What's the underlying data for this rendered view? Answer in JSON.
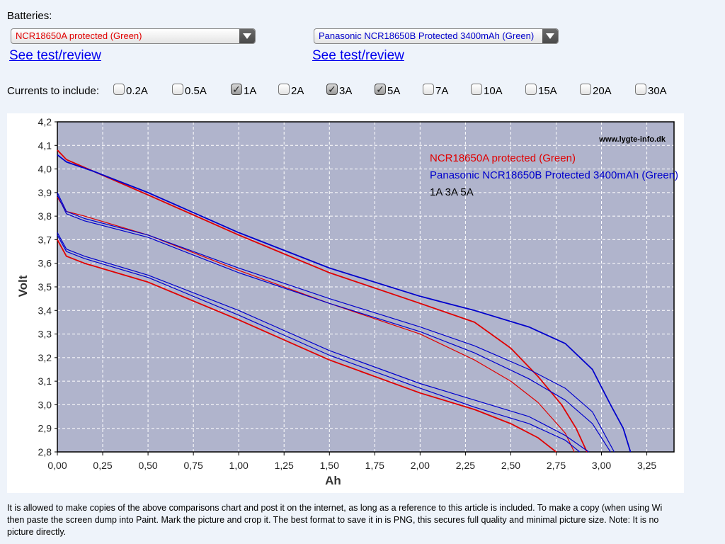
{
  "header": {
    "batteries_label": "Batteries:",
    "battery_1": {
      "selected": "NCR18650A protected (Green)",
      "color": "#e00000",
      "link": "See test/review"
    },
    "battery_2": {
      "selected": "Panasonic NCR18650B Protected 3400mAh (Green)",
      "color": "#0000cc",
      "link": "See test/review"
    }
  },
  "currents": {
    "label": "Currents to include:",
    "options": [
      {
        "label": "0.2A",
        "checked": false
      },
      {
        "label": "0.5A",
        "checked": false
      },
      {
        "label": "1A",
        "checked": true
      },
      {
        "label": "2A",
        "checked": false
      },
      {
        "label": "3A",
        "checked": true
      },
      {
        "label": "5A",
        "checked": true
      },
      {
        "label": "7A",
        "checked": false
      },
      {
        "label": "10A",
        "checked": false
      },
      {
        "label": "15A",
        "checked": false
      },
      {
        "label": "20A",
        "checked": false
      },
      {
        "label": "30A",
        "checked": false
      }
    ]
  },
  "chart_data": {
    "type": "line",
    "xlabel": "Ah",
    "ylabel": "Volt",
    "xlim": [
      0,
      3.4
    ],
    "ylim": [
      2.8,
      4.2
    ],
    "x_ticks": [
      "0,00",
      "0,25",
      "0,50",
      "0,75",
      "1,00",
      "1,25",
      "1,50",
      "1,75",
      "2,00",
      "2,25",
      "2,50",
      "2,75",
      "3,00",
      "3,25"
    ],
    "y_ticks": [
      "2,8",
      "2,9",
      "3,0",
      "3,1",
      "3,2",
      "3,3",
      "3,4",
      "3,5",
      "3,6",
      "3,7",
      "3,8",
      "3,9",
      "4,0",
      "4,1",
      "4,2"
    ],
    "grid": true,
    "watermark": "www.lygte-info.dk",
    "legend_position": "top-right",
    "legend": [
      {
        "text": "NCR18650A protected (Green)",
        "color": "#e00000"
      },
      {
        "text": "Panasonic NCR18650B Protected 3400mAh (Green)",
        "color": "#0000cc"
      },
      {
        "text": "1A 3A 5A",
        "color": "#000000"
      }
    ],
    "series": [
      {
        "battery": 1,
        "current": "1A",
        "color": "#e00000",
        "width": 1.8,
        "points": [
          [
            0,
            4.08
          ],
          [
            0.05,
            4.04
          ],
          [
            0.2,
            3.99
          ],
          [
            0.5,
            3.89
          ],
          [
            1.0,
            3.72
          ],
          [
            1.5,
            3.56
          ],
          [
            2.0,
            3.43
          ],
          [
            2.3,
            3.35
          ],
          [
            2.5,
            3.24
          ],
          [
            2.65,
            3.12
          ],
          [
            2.78,
            3.0
          ],
          [
            2.86,
            2.9
          ],
          [
            2.92,
            2.8
          ]
        ]
      },
      {
        "battery": 1,
        "current": "3A",
        "color": "#e00000",
        "width": 1.2,
        "points": [
          [
            0,
            3.88
          ],
          [
            0.05,
            3.82
          ],
          [
            0.15,
            3.8
          ],
          [
            0.5,
            3.72
          ],
          [
            1.0,
            3.57
          ],
          [
            1.5,
            3.43
          ],
          [
            2.0,
            3.3
          ],
          [
            2.3,
            3.19
          ],
          [
            2.5,
            3.1
          ],
          [
            2.65,
            3.01
          ],
          [
            2.8,
            2.88
          ],
          [
            2.85,
            2.8
          ]
        ]
      },
      {
        "battery": 1,
        "current": "5A",
        "color": "#e00000",
        "width": 1.8,
        "points": [
          [
            0,
            3.7
          ],
          [
            0.05,
            3.63
          ],
          [
            0.15,
            3.6
          ],
          [
            0.5,
            3.52
          ],
          [
            1.0,
            3.36
          ],
          [
            1.5,
            3.19
          ],
          [
            2.0,
            3.05
          ],
          [
            2.3,
            2.98
          ],
          [
            2.5,
            2.92
          ],
          [
            2.65,
            2.86
          ],
          [
            2.75,
            2.8
          ]
        ]
      },
      {
        "battery": 2,
        "current": "1A",
        "color": "#0000cc",
        "width": 1.8,
        "points": [
          [
            0,
            4.06
          ],
          [
            0.05,
            4.03
          ],
          [
            0.2,
            3.99
          ],
          [
            0.5,
            3.9
          ],
          [
            1.0,
            3.73
          ],
          [
            1.5,
            3.58
          ],
          [
            2.0,
            3.46
          ],
          [
            2.3,
            3.4
          ],
          [
            2.6,
            3.33
          ],
          [
            2.8,
            3.26
          ],
          [
            2.95,
            3.15
          ],
          [
            3.05,
            3.0
          ],
          [
            3.12,
            2.9
          ],
          [
            3.16,
            2.8
          ]
        ]
      },
      {
        "battery": 2,
        "current": "3A",
        "color": "#0000cc",
        "width": 1.2,
        "points": [
          [
            0,
            3.9
          ],
          [
            0.05,
            3.82
          ],
          [
            0.15,
            3.79
          ],
          [
            0.5,
            3.72
          ],
          [
            1.0,
            3.58
          ],
          [
            1.5,
            3.45
          ],
          [
            2.0,
            3.33
          ],
          [
            2.3,
            3.25
          ],
          [
            2.6,
            3.15
          ],
          [
            2.8,
            3.07
          ],
          [
            2.95,
            2.97
          ],
          [
            3.07,
            2.8
          ]
        ]
      },
      {
        "battery": 2,
        "current": "3A",
        "color": "#0000cc",
        "width": 1.2,
        "points": [
          [
            0,
            3.89
          ],
          [
            0.05,
            3.81
          ],
          [
            0.15,
            3.78
          ],
          [
            0.5,
            3.71
          ],
          [
            1.0,
            3.56
          ],
          [
            1.5,
            3.43
          ],
          [
            2.0,
            3.31
          ],
          [
            2.3,
            3.22
          ],
          [
            2.6,
            3.11
          ],
          [
            2.8,
            3.02
          ],
          [
            2.95,
            2.92
          ],
          [
            3.05,
            2.8
          ]
        ]
      },
      {
        "battery": 2,
        "current": "5A",
        "color": "#0000cc",
        "width": 1.2,
        "points": [
          [
            0,
            3.73
          ],
          [
            0.05,
            3.66
          ],
          [
            0.15,
            3.63
          ],
          [
            0.5,
            3.55
          ],
          [
            1.0,
            3.4
          ],
          [
            1.5,
            3.23
          ],
          [
            2.0,
            3.09
          ],
          [
            2.3,
            3.02
          ],
          [
            2.6,
            2.95
          ],
          [
            2.8,
            2.87
          ],
          [
            2.93,
            2.8
          ]
        ]
      },
      {
        "battery": 2,
        "current": "5A",
        "color": "#0000cc",
        "width": 1.2,
        "points": [
          [
            0,
            3.72
          ],
          [
            0.05,
            3.65
          ],
          [
            0.15,
            3.62
          ],
          [
            0.5,
            3.54
          ],
          [
            1.0,
            3.38
          ],
          [
            1.5,
            3.21
          ],
          [
            2.0,
            3.07
          ],
          [
            2.3,
            2.99
          ],
          [
            2.6,
            2.92
          ],
          [
            2.8,
            2.85
          ],
          [
            2.88,
            2.8
          ]
        ]
      }
    ]
  },
  "footer": {
    "line1": "It is allowed to make copies of the above comparisons chart and post it on the internet, as long as a reference to this article is included. To make a copy (when using Wi",
    "line2": "then paste the screen dump into Paint. Mark the picture and crop it. The best format to save it in is PNG, this secures full quality and minimal picture size. Note: It is no",
    "line3": "picture directly."
  }
}
